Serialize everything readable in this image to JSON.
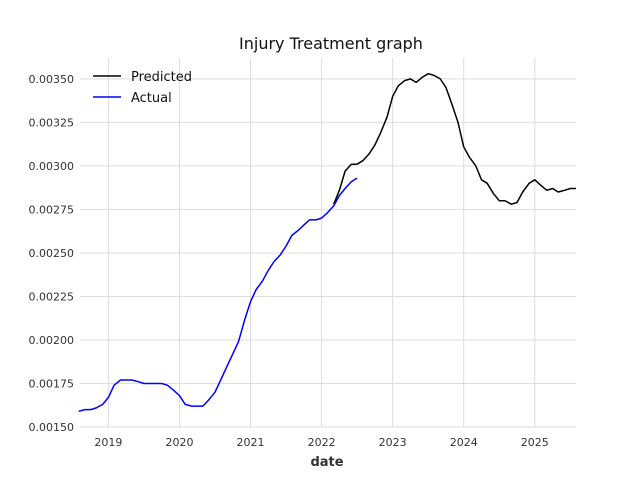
{
  "chart_data": {
    "type": "line",
    "title": "Injury Treatment graph",
    "xlabel": "date",
    "ylabel": "",
    "grid": true,
    "legend": {
      "position": "top-left",
      "entries": [
        "Predicted",
        "Actual"
      ]
    },
    "xlim": [
      2018.6,
      2025.58
    ],
    "ylim": [
      0.0015,
      0.00362
    ],
    "x_ticks": [
      2019,
      2020,
      2021,
      2022,
      2023,
      2024,
      2025
    ],
    "x_tick_labels": [
      "2019",
      "2020",
      "2021",
      "2022",
      "2023",
      "2024",
      "2025"
    ],
    "y_ticks": [
      0.0015,
      0.00175,
      0.002,
      0.00225,
      0.0025,
      0.00275,
      0.003,
      0.00325,
      0.0035
    ],
    "y_tick_labels": [
      "0.00150",
      "0.00175",
      "0.00200",
      "0.00225",
      "0.00250",
      "0.00275",
      "0.00300",
      "0.00325",
      "0.00350"
    ],
    "series": [
      {
        "name": "Predicted",
        "color": "#000000",
        "x": [
          2022.17,
          2022.25,
          2022.33,
          2022.42,
          2022.5,
          2022.58,
          2022.67,
          2022.75,
          2022.83,
          2022.92,
          2023.0,
          2023.08,
          2023.17,
          2023.25,
          2023.33,
          2023.42,
          2023.5,
          2023.58,
          2023.67,
          2023.75,
          2023.83,
          2023.92,
          2024.0,
          2024.08,
          2024.17,
          2024.25,
          2024.33,
          2024.42,
          2024.5,
          2024.58,
          2024.67,
          2024.75,
          2024.83,
          2024.92,
          2025.0,
          2025.08,
          2025.17,
          2025.25,
          2025.33,
          2025.42,
          2025.5,
          2025.58
        ],
        "y": [
          0.00278,
          0.00286,
          0.00297,
          0.00301,
          0.00301,
          0.00303,
          0.00307,
          0.00312,
          0.00319,
          0.00328,
          0.0034,
          0.00346,
          0.00349,
          0.0035,
          0.00348,
          0.00351,
          0.00353,
          0.00352,
          0.0035,
          0.00345,
          0.00336,
          0.00325,
          0.00311,
          0.00305,
          0.003,
          0.00292,
          0.0029,
          0.00284,
          0.0028,
          0.0028,
          0.00278,
          0.00279,
          0.00285,
          0.0029,
          0.00292,
          0.00289,
          0.00286,
          0.00287,
          0.00285,
          0.00286,
          0.00287,
          0.00287
        ]
      },
      {
        "name": "Actual",
        "color": "#0000ff",
        "x": [
          2018.58,
          2018.67,
          2018.75,
          2018.83,
          2018.92,
          2019.0,
          2019.08,
          2019.17,
          2019.25,
          2019.33,
          2019.42,
          2019.5,
          2019.58,
          2019.67,
          2019.75,
          2019.83,
          2019.92,
          2020.0,
          2020.08,
          2020.17,
          2020.25,
          2020.33,
          2020.42,
          2020.5,
          2020.58,
          2020.67,
          2020.75,
          2020.83,
          2020.92,
          2021.0,
          2021.08,
          2021.17,
          2021.25,
          2021.33,
          2021.42,
          2021.5,
          2021.58,
          2021.67,
          2021.75,
          2021.83,
          2021.92,
          2022.0,
          2022.08,
          2022.17,
          2022.25,
          2022.33,
          2022.42,
          2022.5
        ],
        "y": [
          0.00159,
          0.0016,
          0.0016,
          0.00161,
          0.00163,
          0.00167,
          0.00174,
          0.00177,
          0.00177,
          0.00177,
          0.00176,
          0.00175,
          0.00175,
          0.00175,
          0.00175,
          0.00174,
          0.00171,
          0.00168,
          0.00163,
          0.00162,
          0.00162,
          0.00162,
          0.00166,
          0.0017,
          0.00177,
          0.00185,
          0.00192,
          0.00199,
          0.00212,
          0.00222,
          0.00229,
          0.00234,
          0.0024,
          0.00245,
          0.00249,
          0.00254,
          0.0026,
          0.00263,
          0.00266,
          0.00269,
          0.00269,
          0.0027,
          0.00273,
          0.00277,
          0.00283,
          0.00287,
          0.00291,
          0.00293
        ]
      }
    ]
  }
}
